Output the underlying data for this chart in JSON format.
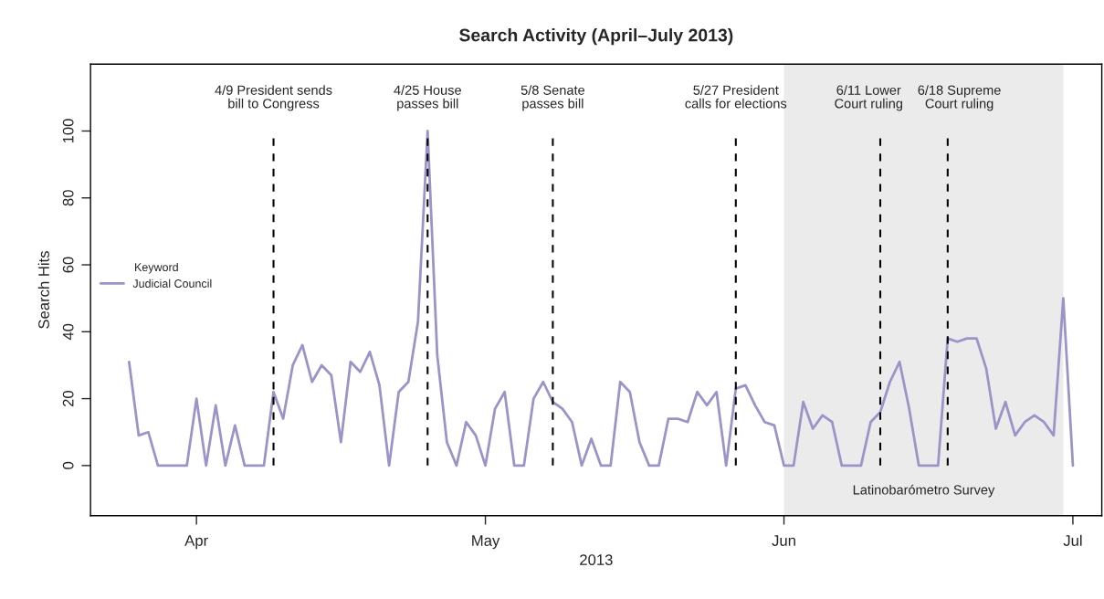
{
  "chart_data": {
    "type": "line",
    "title": "Search Activity (April–July 2013)",
    "xlabel": "2013",
    "ylabel": "Search Hits",
    "legend_title": "Keyword",
    "x": [
      "2013-03-25",
      "2013-03-26",
      "2013-03-27",
      "2013-03-28",
      "2013-03-29",
      "2013-03-30",
      "2013-03-31",
      "2013-04-01",
      "2013-04-02",
      "2013-04-03",
      "2013-04-04",
      "2013-04-05",
      "2013-04-06",
      "2013-04-07",
      "2013-04-08",
      "2013-04-09",
      "2013-04-10",
      "2013-04-11",
      "2013-04-12",
      "2013-04-13",
      "2013-04-14",
      "2013-04-15",
      "2013-04-16",
      "2013-04-17",
      "2013-04-18",
      "2013-04-19",
      "2013-04-20",
      "2013-04-21",
      "2013-04-22",
      "2013-04-23",
      "2013-04-24",
      "2013-04-25",
      "2013-04-26",
      "2013-04-27",
      "2013-04-28",
      "2013-04-29",
      "2013-04-30",
      "2013-05-01",
      "2013-05-02",
      "2013-05-03",
      "2013-05-04",
      "2013-05-05",
      "2013-05-06",
      "2013-05-07",
      "2013-05-08",
      "2013-05-09",
      "2013-05-10",
      "2013-05-11",
      "2013-05-12",
      "2013-05-13",
      "2013-05-14",
      "2013-05-15",
      "2013-05-16",
      "2013-05-17",
      "2013-05-18",
      "2013-05-19",
      "2013-05-20",
      "2013-05-21",
      "2013-05-22",
      "2013-05-23",
      "2013-05-24",
      "2013-05-25",
      "2013-05-26",
      "2013-05-27",
      "2013-05-28",
      "2013-05-29",
      "2013-05-30",
      "2013-05-31",
      "2013-06-01",
      "2013-06-02",
      "2013-06-03",
      "2013-06-04",
      "2013-06-05",
      "2013-06-06",
      "2013-06-07",
      "2013-06-08",
      "2013-06-09",
      "2013-06-10",
      "2013-06-11",
      "2013-06-12",
      "2013-06-13",
      "2013-06-14",
      "2013-06-15",
      "2013-06-16",
      "2013-06-17",
      "2013-06-18",
      "2013-06-19",
      "2013-06-20",
      "2013-06-21",
      "2013-06-22",
      "2013-06-23",
      "2013-06-24",
      "2013-06-25",
      "2013-06-26",
      "2013-06-27",
      "2013-06-28",
      "2013-06-29",
      "2013-06-30",
      "2013-07-01"
    ],
    "series": [
      {
        "name": "Judicial Council",
        "color": "#9a94c8",
        "values": [
          31,
          9,
          10,
          0,
          0,
          0,
          0,
          20,
          0,
          18,
          0,
          12,
          0,
          0,
          0,
          22,
          14,
          30,
          36,
          25,
          30,
          27,
          7,
          31,
          28,
          34,
          24,
          0,
          22,
          25,
          43,
          100,
          33,
          7,
          0,
          13,
          9,
          0,
          17,
          22,
          0,
          0,
          20,
          25,
          19,
          17,
          13,
          0,
          8,
          0,
          0,
          25,
          22,
          7,
          0,
          0,
          14,
          14,
          13,
          22,
          18,
          22,
          0,
          23,
          24,
          18,
          13,
          12,
          0,
          0,
          19,
          11,
          15,
          13,
          0,
          0,
          0,
          13,
          16,
          25,
          31,
          17,
          0,
          0,
          0,
          38,
          37,
          38,
          38,
          29,
          11,
          19,
          9,
          13,
          15,
          13,
          9,
          50,
          0
        ]
      }
    ],
    "xlim": [
      "2013-03-21",
      "2013-07-04"
    ],
    "xticks": [
      {
        "value": "2013-04-01",
        "label": "Apr"
      },
      {
        "value": "2013-05-01",
        "label": "May"
      },
      {
        "value": "2013-06-01",
        "label": "Jun"
      },
      {
        "value": "2013-07-01",
        "label": "Jul"
      }
    ],
    "ylim": [
      -15,
      120
    ],
    "yticks": [
      0,
      20,
      40,
      60,
      80,
      100
    ],
    "ref_lines": [
      {
        "axis": "x",
        "value": "2013-04-09",
        "label": "4/9 President sends\nbill to Congress",
        "line_style": "dashed",
        "color": "#000000"
      },
      {
        "axis": "x",
        "value": "2013-04-25",
        "label": "4/25 House\npasses bill",
        "line_style": "dashed",
        "color": "#000000"
      },
      {
        "axis": "x",
        "value": "2013-05-08",
        "label": "5/8 Senate\npasses bill",
        "line_style": "dashed",
        "color": "#000000"
      },
      {
        "axis": "x",
        "value": "2013-05-27",
        "label": "5/27 President\ncalls for elections",
        "line_style": "dashed",
        "color": "#000000"
      },
      {
        "axis": "x",
        "value": "2013-06-11",
        "label": "6/11 Lower\nCourt ruling",
        "line_style": "dashed",
        "color": "#000000"
      },
      {
        "axis": "x",
        "value": "2013-06-18",
        "label": "6/18 Supreme\nCourt ruling",
        "line_style": "dashed",
        "color": "#000000"
      }
    ],
    "bands": [
      {
        "axis": "x",
        "from": "2013-06-01",
        "to": "2013-06-30",
        "label": "Latinobarómetro Survey",
        "color": "#ebebeb"
      }
    ],
    "legend": "left",
    "grid": false,
    "marker": "none",
    "line_style": "solid"
  }
}
